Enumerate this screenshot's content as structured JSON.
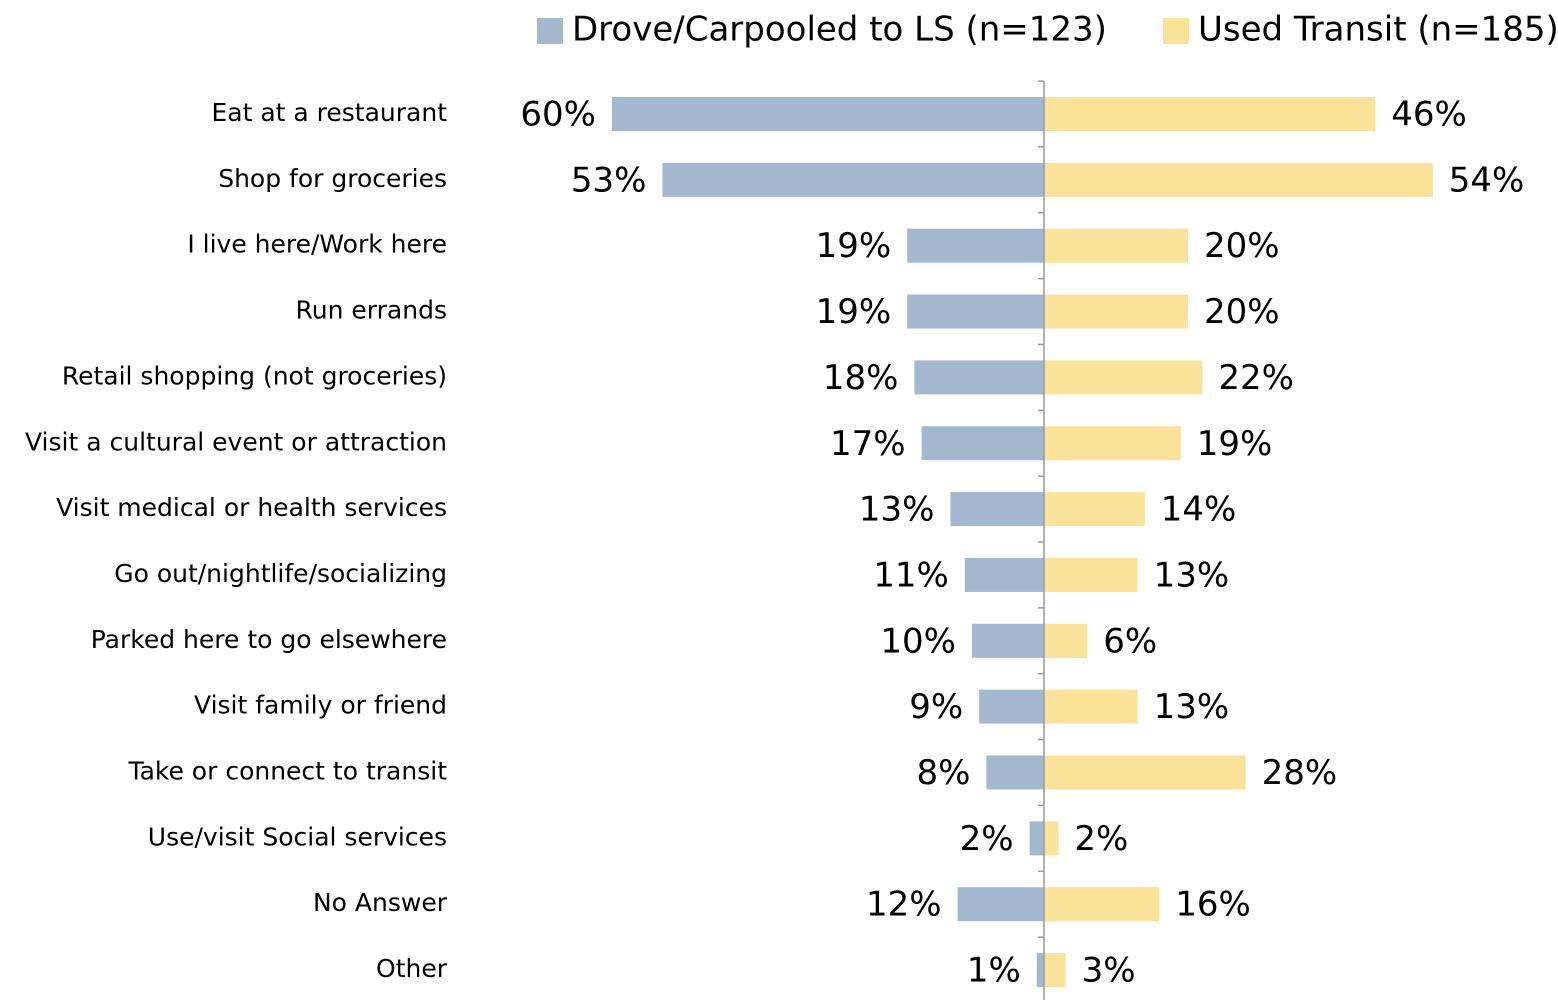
{
  "chart_data": {
    "type": "bar",
    "categories": [
      "Eat at a restaurant",
      "Shop for groceries",
      "I live here/Work here",
      "Run errands",
      "Retail shopping (not groceries)",
      "Visit a cultural event or attraction",
      "Visit medical or health services",
      "Go out/nightlife/socializing",
      "Parked here to go elsewhere",
      "Visit family or friend",
      "Take or connect to transit",
      "Use/visit Social services",
      "No Answer",
      "Other"
    ],
    "series": [
      {
        "name": "Drove/Carpooled to LS (n=123)",
        "color": "#a3b8cf",
        "values": [
          60,
          53,
          19,
          19,
          18,
          17,
          13,
          11,
          10,
          9,
          8,
          2,
          12,
          1
        ],
        "value_labels": [
          "60%",
          "53%",
          "19%",
          "19%",
          "18%",
          "17%",
          "13%",
          "11%",
          "10%",
          "9%",
          "8%",
          "2%",
          "12%",
          "1%"
        ]
      },
      {
        "name": "Used Transit (n=185)",
        "color": "#fbe29b",
        "values": [
          46,
          54,
          20,
          20,
          22,
          19,
          14,
          13,
          6,
          13,
          28,
          2,
          16,
          3
        ],
        "value_labels": [
          "46%",
          "54%",
          "20%",
          "20%",
          "22%",
          "19%",
          "14%",
          "13%",
          "6%",
          "13%",
          "28%",
          "2%",
          "16%",
          "3%"
        ]
      }
    ]
  }
}
